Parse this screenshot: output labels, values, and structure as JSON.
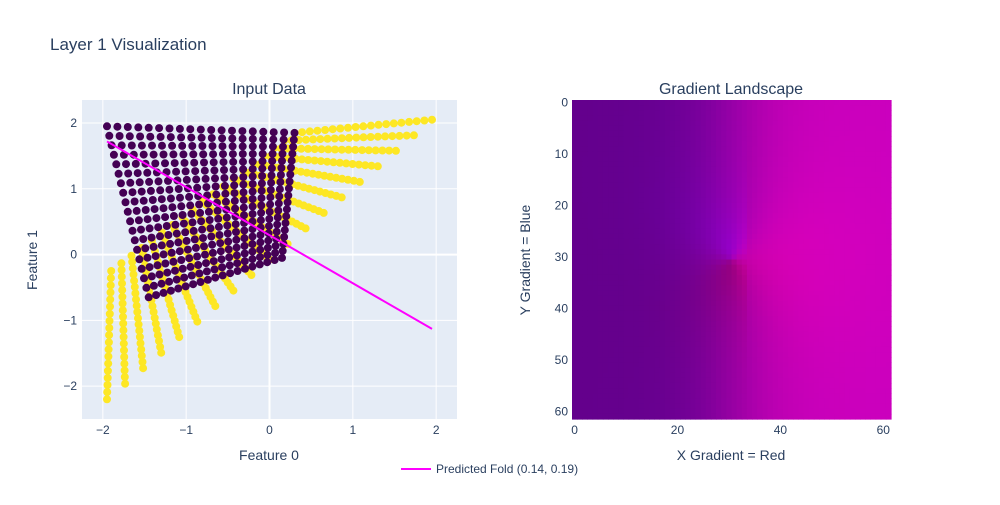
{
  "figure": {
    "title": "Layer 1 Visualization"
  },
  "chart_data": [
    {
      "type": "scatter",
      "title": "Input Data",
      "xlabel": "Feature 0",
      "ylabel": "Feature 1",
      "xlim": [
        -2.25,
        2.25
      ],
      "ylim": [
        -2.5,
        2.35
      ],
      "xticks": [
        {
          "v": -2,
          "label": "−2"
        },
        {
          "v": -1,
          "label": "−1"
        },
        {
          "v": 0,
          "label": "0"
        },
        {
          "v": 1,
          "label": "1"
        },
        {
          "v": 2,
          "label": "2"
        }
      ],
      "yticks": [
        {
          "v": -2,
          "label": "−2"
        },
        {
          "v": -1,
          "label": "−1"
        },
        {
          "v": 0,
          "label": "0"
        },
        {
          "v": 1,
          "label": "1"
        },
        {
          "v": 2,
          "label": "2"
        }
      ],
      "grid": true,
      "class_colors": {
        "class_0": "#440154",
        "class_1": "#fde725"
      },
      "class_1_region": {
        "corners": [
          [
            -1.95,
            -2.2
          ],
          [
            1.95,
            2.05
          ],
          [
            0.3,
            1.85
          ],
          [
            -1.9,
            -0.25
          ]
        ]
      },
      "class_0_region": {
        "corners": [
          [
            -1.95,
            1.95
          ],
          [
            0.3,
            1.85
          ],
          [
            0.15,
            -0.05
          ],
          [
            -1.45,
            -0.65
          ]
        ]
      },
      "fold_line": {
        "name": "Predicted Fold (0.14, 0.19)",
        "color": "#ff00ff",
        "x": [
          -1.95,
          1.95
        ],
        "y": [
          1.72,
          -1.13
        ]
      }
    },
    {
      "type": "heatmap",
      "title": "Gradient Landscape",
      "xlabel": "X Gradient = Red",
      "ylabel": "Y Gradient = Blue",
      "size": 62,
      "center": [
        30.5,
        30.5
      ],
      "xticks": [
        {
          "v": 0,
          "label": "0"
        },
        {
          "v": 20,
          "label": "20"
        },
        {
          "v": 40,
          "label": "40"
        },
        {
          "v": 60,
          "label": "60"
        }
      ],
      "yticks": [
        {
          "v": 0,
          "label": "0"
        },
        {
          "v": 10,
          "label": "10"
        },
        {
          "v": 20,
          "label": "20"
        },
        {
          "v": 30,
          "label": "30"
        },
        {
          "v": 40,
          "label": "40"
        },
        {
          "v": 50,
          "label": "50"
        },
        {
          "v": 60,
          "label": "60"
        }
      ]
    }
  ],
  "legend": {
    "items": [
      {
        "label": "Predicted Fold (0.14, 0.19)",
        "color": "#ff00ff"
      }
    ]
  }
}
